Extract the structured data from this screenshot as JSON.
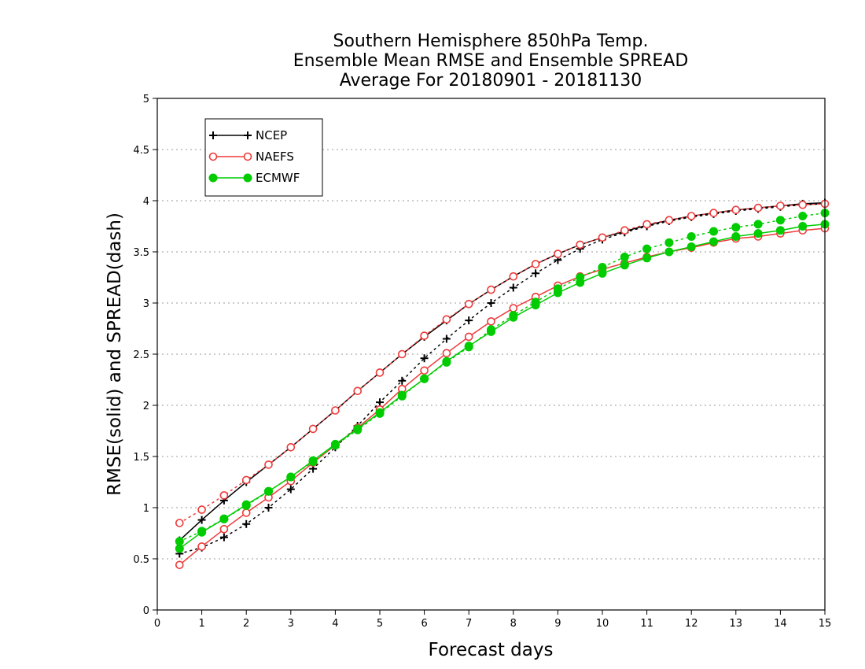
{
  "chart_data": {
    "type": "line",
    "title": [
      "Southern Hemisphere 850hPa Temp.",
      "Ensemble Mean RMSE and Ensemble SPREAD",
      "Average For 20180901 - 20181130"
    ],
    "xlabel": "Forecast days",
    "ylabel": "RMSE(solid) and SPREAD(dash)",
    "xlim": [
      0,
      15
    ],
    "ylim": [
      0,
      5
    ],
    "xticks": [
      0,
      1,
      2,
      3,
      4,
      5,
      6,
      7,
      8,
      9,
      10,
      11,
      12,
      13,
      14,
      15
    ],
    "xtick_labels": [
      "0",
      "1",
      "2",
      "3",
      "4",
      "5",
      "6",
      "7",
      "8",
      "9",
      "10",
      "11",
      "12",
      "13",
      "14",
      "15"
    ],
    "yticks": [
      0,
      0.5,
      1,
      1.5,
      2,
      2.5,
      3,
      3.5,
      4,
      4.5,
      5
    ],
    "ytick_labels": [
      "0",
      "0.5",
      "1",
      "1.5",
      "2",
      "2.5",
      "3",
      "3.5",
      "4",
      "4.5",
      "5"
    ],
    "grid": "horizontal dotted",
    "legend_position": "top-left",
    "x": [
      0.5,
      1,
      1.5,
      2,
      2.5,
      3,
      3.5,
      4,
      4.5,
      5,
      5.5,
      6,
      6.5,
      7,
      7.5,
      8,
      8.5,
      9,
      9.5,
      10,
      10.5,
      11,
      11.5,
      12,
      12.5,
      13,
      13.5,
      14,
      14.5,
      15
    ],
    "series": [
      {
        "name": "NCEP",
        "color": "#000000",
        "marker": "plus",
        "rmse": [
          0.68,
          0.88,
          1.07,
          1.25,
          1.42,
          1.59,
          1.77,
          1.95,
          2.14,
          2.32,
          2.5,
          2.67,
          2.83,
          2.99,
          3.13,
          3.26,
          3.38,
          3.48,
          3.57,
          3.64,
          3.7,
          3.76,
          3.81,
          3.85,
          3.88,
          3.91,
          3.93,
          3.95,
          3.97,
          3.98
        ],
        "spread": [
          0.55,
          0.61,
          0.71,
          0.84,
          1.0,
          1.18,
          1.38,
          1.59,
          1.8,
          2.03,
          2.24,
          2.46,
          2.65,
          2.83,
          3.0,
          3.15,
          3.29,
          3.42,
          3.53,
          3.62,
          3.69,
          3.75,
          3.8,
          3.84,
          3.87,
          3.9,
          3.92,
          3.94,
          3.96,
          3.97
        ]
      },
      {
        "name": "NAEFS",
        "color": "#ee3a3a",
        "marker": "circle",
        "rmse": [
          0.44,
          0.62,
          0.79,
          0.95,
          1.1,
          1.26,
          1.44,
          1.61,
          1.78,
          1.96,
          2.16,
          2.34,
          2.51,
          2.67,
          2.82,
          2.95,
          3.06,
          3.17,
          3.26,
          3.33,
          3.39,
          3.45,
          3.5,
          3.54,
          3.59,
          3.63,
          3.65,
          3.68,
          3.71,
          3.73
        ],
        "spread": [
          0.85,
          0.98,
          1.12,
          1.27,
          1.42,
          1.59,
          1.77,
          1.95,
          2.14,
          2.32,
          2.5,
          2.68,
          2.84,
          2.99,
          3.13,
          3.26,
          3.38,
          3.48,
          3.57,
          3.64,
          3.71,
          3.77,
          3.81,
          3.85,
          3.88,
          3.91,
          3.93,
          3.95,
          3.96,
          3.97
        ]
      },
      {
        "name": "ECMWF",
        "color": "#00cc00",
        "marker": "filled-circle",
        "rmse": [
          0.6,
          0.76,
          0.89,
          1.03,
          1.16,
          1.3,
          1.46,
          1.62,
          1.77,
          1.93,
          2.1,
          2.26,
          2.43,
          2.58,
          2.72,
          2.86,
          2.98,
          3.1,
          3.2,
          3.29,
          3.37,
          3.44,
          3.5,
          3.55,
          3.6,
          3.65,
          3.68,
          3.71,
          3.75,
          3.77
        ],
        "spread": [
          0.67,
          0.77,
          0.89,
          1.02,
          1.16,
          1.3,
          1.45,
          1.61,
          1.76,
          1.92,
          2.09,
          2.26,
          2.42,
          2.57,
          2.74,
          2.88,
          3.01,
          3.14,
          3.25,
          3.35,
          3.45,
          3.53,
          3.59,
          3.65,
          3.7,
          3.74,
          3.77,
          3.81,
          3.85,
          3.88
        ]
      }
    ]
  }
}
